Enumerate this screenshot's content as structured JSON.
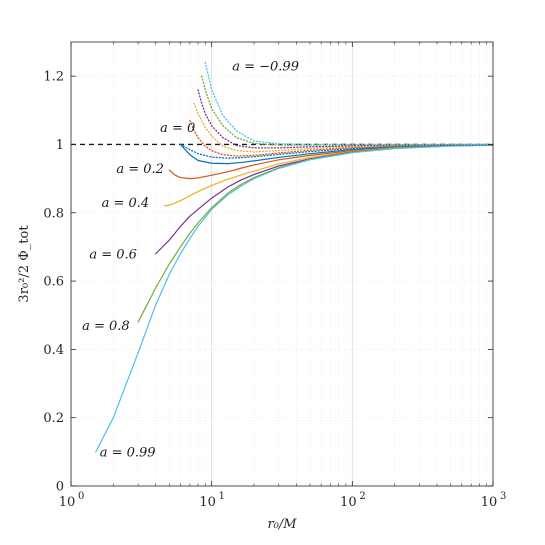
{
  "chart_data": {
    "type": "line",
    "xlabel": "r₀/M",
    "ylabel": "3r₀²/2 Φ_tot",
    "xscale": "log",
    "xlim": [
      1,
      1000
    ],
    "ylim": [
      0,
      1.3
    ],
    "grid": "on (major and minor, faint)",
    "x_ticks": [
      {
        "value": 1,
        "label": "10",
        "exp": "0"
      },
      {
        "value": 10,
        "label": "10",
        "exp": "1"
      },
      {
        "value": 100,
        "label": "10",
        "exp": "2"
      },
      {
        "value": 1000,
        "label": "10",
        "exp": "3"
      }
    ],
    "y_ticks": [
      {
        "value": 0,
        "label": "0"
      },
      {
        "value": 0.2,
        "label": "0.2"
      },
      {
        "value": 0.4,
        "label": "0.4"
      },
      {
        "value": 0.6,
        "label": "0.6"
      },
      {
        "value": 0.8,
        "label": "0.8"
      },
      {
        "value": 1.0,
        "label": "1"
      },
      {
        "value": 1.2,
        "label": "1.2"
      }
    ],
    "reference_line": {
      "y": 1.0,
      "style": "dashed",
      "color": "#1a1a1a"
    },
    "annotations": [
      {
        "text": "a = −0.99",
        "x": 14,
        "y": 1.23
      },
      {
        "text": "a = 0",
        "x": 4.3,
        "y": 1.05
      },
      {
        "text": "a = 0.2",
        "x": 2.1,
        "y": 0.93
      },
      {
        "text": "a = 0.4",
        "x": 1.65,
        "y": 0.83
      },
      {
        "text": "a = 0.6",
        "x": 1.35,
        "y": 0.68
      },
      {
        "text": "a = 0.8",
        "x": 1.2,
        "y": 0.47
      },
      {
        "text": "a = 0.99",
        "x": 1.6,
        "y": 0.1
      }
    ],
    "series": [
      {
        "style": "solid",
        "color": "#0072BD",
        "x": [
          6,
          7,
          8,
          10,
          13,
          16,
          20,
          30,
          50,
          100,
          200,
          500,
          1000
        ],
        "y": [
          1.0,
          0.97,
          0.953,
          0.945,
          0.944,
          0.947,
          0.952,
          0.962,
          0.973,
          0.985,
          0.992,
          0.997,
          0.999
        ]
      },
      {
        "style": "solid",
        "color": "#D95319",
        "x": [
          5.0,
          5.5,
          6,
          7,
          8,
          10,
          13,
          16,
          20,
          30,
          50,
          100,
          200,
          500,
          1000
        ],
        "y": [
          0.925,
          0.91,
          0.903,
          0.9,
          0.902,
          0.91,
          0.92,
          0.93,
          0.94,
          0.955,
          0.968,
          0.982,
          0.99,
          0.996,
          0.998
        ]
      },
      {
        "style": "solid",
        "color": "#EDB120",
        "x": [
          4.6,
          5,
          6,
          7,
          8,
          10,
          13,
          16,
          20,
          30,
          50,
          100,
          200,
          500,
          1000
        ],
        "y": [
          0.82,
          0.822,
          0.835,
          0.85,
          0.862,
          0.88,
          0.898,
          0.91,
          0.922,
          0.943,
          0.962,
          0.98,
          0.99,
          0.996,
          0.998
        ]
      },
      {
        "style": "solid",
        "color": "#7E2F8E",
        "x": [
          4.0,
          5,
          6,
          7,
          8,
          10,
          13,
          16,
          20,
          30,
          50,
          100,
          200,
          500,
          1000
        ],
        "y": [
          0.68,
          0.72,
          0.76,
          0.79,
          0.81,
          0.843,
          0.875,
          0.895,
          0.912,
          0.937,
          0.958,
          0.978,
          0.989,
          0.996,
          0.998
        ]
      },
      {
        "style": "solid",
        "color": "#77AC30",
        "x": [
          3.0,
          4,
          5,
          6,
          7,
          8,
          10,
          13,
          16,
          20,
          30,
          50,
          100,
          200,
          500,
          1000
        ],
        "y": [
          0.48,
          0.58,
          0.65,
          0.7,
          0.74,
          0.77,
          0.815,
          0.857,
          0.882,
          0.903,
          0.932,
          0.956,
          0.977,
          0.989,
          0.996,
          0.998
        ]
      },
      {
        "style": "solid",
        "color": "#4DBEEE",
        "x": [
          1.5,
          2,
          3,
          4,
          5,
          6,
          7,
          8,
          10,
          13,
          16,
          20,
          30,
          50,
          100,
          200,
          500,
          1000
        ],
        "y": [
          0.1,
          0.2,
          0.39,
          0.53,
          0.62,
          0.68,
          0.725,
          0.76,
          0.81,
          0.852,
          0.877,
          0.9,
          0.93,
          0.955,
          0.976,
          0.988,
          0.995,
          0.998
        ]
      },
      {
        "style": "dotted",
        "color": "#0072BD",
        "x": [
          6,
          7,
          8,
          10,
          13,
          16,
          20,
          30,
          50,
          100,
          200,
          500,
          1000
        ],
        "y": [
          1.0,
          0.985,
          0.973,
          0.963,
          0.96,
          0.961,
          0.964,
          0.971,
          0.979,
          0.988,
          0.994,
          0.998,
          0.999
        ]
      },
      {
        "style": "dotted",
        "color": "#D95319",
        "x": [
          7.0,
          7.5,
          8,
          9,
          10,
          12,
          15,
          20,
          30,
          50,
          100,
          200,
          500,
          1000
        ],
        "y": [
          1.07,
          1.04,
          1.02,
          0.995,
          0.982,
          0.97,
          0.966,
          0.968,
          0.975,
          0.983,
          0.991,
          0.995,
          0.998,
          0.999
        ]
      },
      {
        "style": "dotted",
        "color": "#EDB120",
        "x": [
          7.5,
          8,
          9,
          10,
          12,
          15,
          20,
          30,
          50,
          100,
          200,
          500,
          1000
        ],
        "y": [
          1.12,
          1.09,
          1.05,
          1.025,
          0.995,
          0.982,
          0.978,
          0.982,
          0.988,
          0.994,
          0.997,
          0.999,
          1.0
        ]
      },
      {
        "style": "dotted",
        "color": "#7E2F8E",
        "x": [
          8.0,
          8.5,
          9,
          10,
          12,
          15,
          20,
          30,
          50,
          100,
          200,
          500,
          1000
        ],
        "y": [
          1.16,
          1.12,
          1.09,
          1.055,
          1.02,
          0.997,
          0.99,
          0.99,
          0.993,
          0.996,
          0.998,
          0.999,
          1.0
        ]
      },
      {
        "style": "dotted",
        "color": "#77AC30",
        "x": [
          8.5,
          9,
          10,
          12,
          15,
          20,
          30,
          50,
          100,
          200,
          500,
          1000
        ],
        "y": [
          1.2,
          1.16,
          1.105,
          1.055,
          1.02,
          1.003,
          0.998,
          0.998,
          0.999,
          0.999,
          1.0,
          1.0
        ]
      },
      {
        "style": "dotted",
        "color": "#4DBEEE",
        "x": [
          9.0,
          9.5,
          10,
          12,
          15,
          20,
          30,
          50,
          100,
          200,
          500,
          1000
        ],
        "y": [
          1.24,
          1.2,
          1.16,
          1.085,
          1.04,
          1.01,
          1.002,
          1.0,
          1.0,
          1.0,
          1.0,
          1.0
        ]
      }
    ]
  }
}
